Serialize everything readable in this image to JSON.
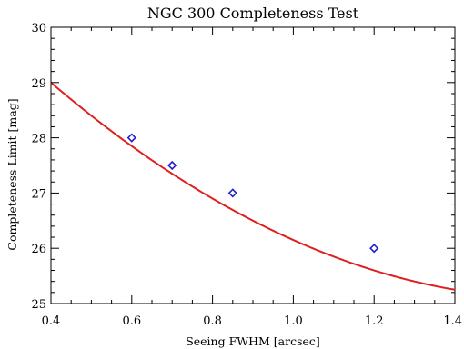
{
  "chart_data": {
    "type": "line",
    "title": "NGC 300 Completeness Test",
    "xlabel": "Seeing FWHM [arcsec]",
    "ylabel": "Completeness Limit [mag]",
    "xlim": [
      0.4,
      1.4
    ],
    "ylim": [
      25,
      30
    ],
    "x_ticks": [
      0.4,
      0.6,
      0.8,
      1.0,
      1.2,
      1.4
    ],
    "x_tick_labels": [
      "0.4",
      "0.6",
      "0.8",
      "1.0",
      "1.2",
      "1.4"
    ],
    "y_ticks": [
      25,
      26,
      27,
      28,
      29,
      30
    ],
    "y_tick_labels": [
      "25",
      "26",
      "27",
      "28",
      "29",
      "30"
    ],
    "grid": false,
    "series": [
      {
        "type": "scatter",
        "marker": "diamond",
        "color": "#2222cc",
        "x": [
          0.6,
          0.7,
          0.85,
          1.2
        ],
        "y": [
          28.0,
          27.5,
          27.0,
          26.0
        ]
      },
      {
        "type": "line",
        "color": "#e02020",
        "fit": "quadratic",
        "coefficients": [
          31.9,
          -8.25,
          2.5
        ]
      }
    ]
  }
}
